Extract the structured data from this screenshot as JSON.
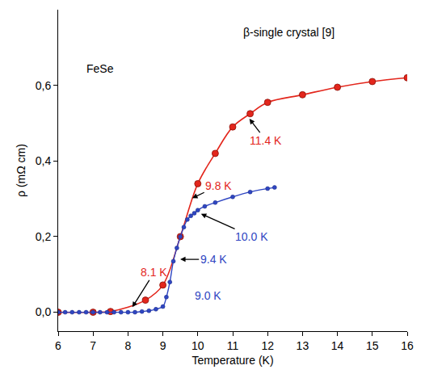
{
  "chart_data": {
    "type": "line",
    "x_label": "Temperature (K)",
    "y_label": "ρ (mΩ cm)",
    "xlim": [
      6,
      16
    ],
    "xticks": [
      6,
      7,
      8,
      9,
      10,
      11,
      12,
      13,
      14,
      15,
      16
    ],
    "ylim": [
      -0.05,
      0.8
    ],
    "yticks": [
      {
        "value": 0,
        "label": "0,0"
      },
      {
        "value": 0.2,
        "label": "0,2"
      },
      {
        "value": 0.4,
        "label": "0,4"
      },
      {
        "value": 0.6,
        "label": "0,6"
      }
    ],
    "grid": false,
    "series": [
      {
        "color": "#e3261c",
        "marker": "circle",
        "line_style": "solid",
        "x": [
          6.0,
          7.0,
          7.5,
          8.5,
          9.0,
          9.5,
          10.0,
          10.5,
          11.0,
          11.5,
          12.0,
          13.0,
          14.0,
          15.0,
          16.0
        ],
        "values": [
          0.0,
          0.0,
          0.002,
          0.032,
          0.072,
          0.2,
          0.34,
          0.42,
          0.49,
          0.525,
          0.555,
          0.575,
          0.595,
          0.61,
          0.62
        ]
      },
      {
        "color": "#2f46c2",
        "marker": "dot",
        "line_style": "solid",
        "x": [
          6.0,
          6.2,
          6.4,
          6.6,
          6.8,
          7.0,
          7.2,
          7.4,
          7.6,
          7.8,
          8.0,
          8.2,
          8.4,
          8.6,
          8.8,
          9.0,
          9.1,
          9.2,
          9.3,
          9.4,
          9.5,
          9.6,
          9.7,
          9.8,
          9.9,
          10.0,
          10.2,
          10.5,
          11.0,
          11.5,
          12.0,
          12.2
        ],
        "values": [
          0.0,
          0.0,
          0.0,
          0.0,
          0.0,
          0.0,
          0.0,
          0.0,
          0.0,
          0.0,
          0.0,
          0.0,
          0.002,
          0.004,
          0.008,
          0.015,
          0.04,
          0.08,
          0.135,
          0.17,
          0.2,
          0.225,
          0.245,
          0.255,
          0.262,
          0.27,
          0.28,
          0.29,
          0.305,
          0.318,
          0.327,
          0.33
        ]
      }
    ],
    "annotations": [
      {
        "text": "FeSe",
        "color": "#000000",
        "text_x": 7.2,
        "text_y": 0.645
      },
      {
        "text": "β-single crystal [9]",
        "color": "#000000",
        "text_x": 12.6,
        "text_y": 0.74
      },
      {
        "text": "11.4 K",
        "color": "#e3261c",
        "x": 11.45,
        "y": 0.515,
        "text_x": 11.95,
        "text_y": 0.455
      },
      {
        "text": "9.8 K",
        "color": "#e3261c",
        "x": 9.8,
        "y": 0.3,
        "text_x": 10.6,
        "text_y": 0.335
      },
      {
        "text": "8.1 K",
        "color": "#e3261c",
        "x": 8.1,
        "y": 0.01,
        "text_x": 8.75,
        "text_y": 0.105
      },
      {
        "text": "10.0 K",
        "color": "#2f46c2",
        "x": 10.05,
        "y": 0.262,
        "text_x": 11.55,
        "text_y": 0.2
      },
      {
        "text": "9.4 K",
        "color": "#2f46c2",
        "x": 9.45,
        "y": 0.14,
        "text_x": 10.45,
        "text_y": 0.14
      },
      {
        "text": "9.0 K",
        "color": "#2f46c2",
        "text_x": 10.3,
        "text_y": 0.045
      }
    ]
  }
}
